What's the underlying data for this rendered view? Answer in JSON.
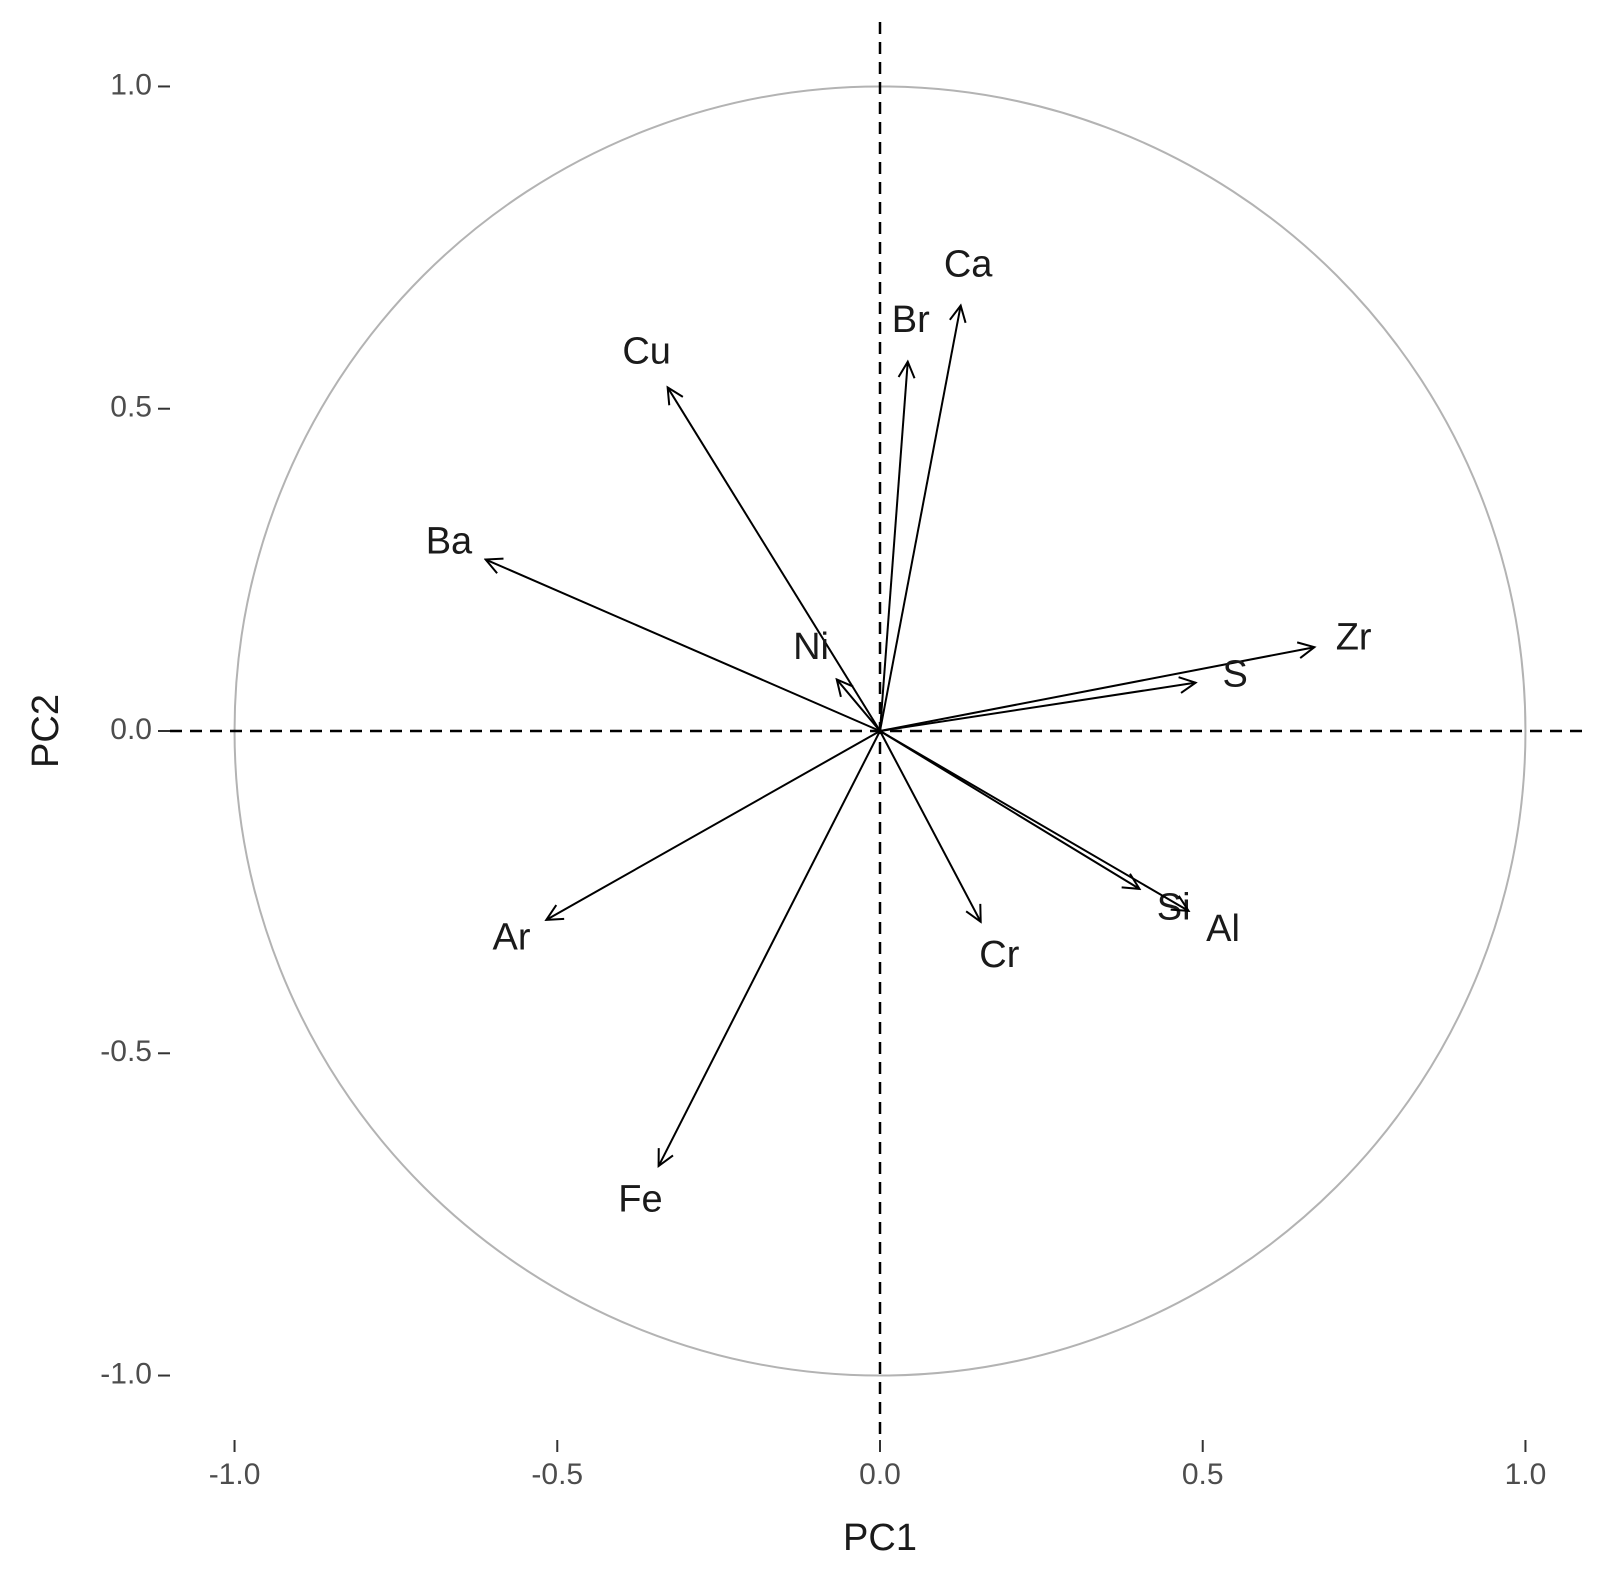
{
  "chart_data": {
    "type": "vector",
    "x_label": "PC1",
    "y_label": "PC2",
    "categories": [
      "Ca",
      "Br",
      "Cu",
      "Ba",
      "Zr",
      "S",
      "Ni",
      "Ar",
      "Fe",
      "Cr",
      "Si",
      "Al"
    ],
    "x": [
      0.125,
      0.043,
      -0.329,
      -0.611,
      0.673,
      0.489,
      -0.067,
      -0.517,
      -0.343,
      0.156,
      0.402,
      0.478
    ],
    "values": [
      0.66,
      0.573,
      0.533,
      0.266,
      0.13,
      0.075,
      0.08,
      -0.293,
      -0.675,
      -0.296,
      -0.245,
      -0.279
    ],
    "color": "#000000",
    "circle_color": "#b3b3b3",
    "xlim": [
      -1.1,
      1.1
    ],
    "ylim": [
      -1.1,
      1.1
    ],
    "xticks": [
      {
        "value": -1,
        "label": "-1.0"
      },
      {
        "value": -0.5,
        "label": "-0.5"
      },
      {
        "value": 0,
        "label": "0.0"
      },
      {
        "value": 0.5,
        "label": "0.5"
      },
      {
        "value": 1,
        "label": "1.0"
      }
    ],
    "yticks": [
      {
        "value": -1,
        "label": "-1.0"
      },
      {
        "value": -0.5,
        "label": "-0.5"
      },
      {
        "value": 0,
        "label": "0.0"
      },
      {
        "value": 0.5,
        "label": "0.5"
      },
      {
        "value": 1,
        "label": "1.0"
      }
    ]
  }
}
